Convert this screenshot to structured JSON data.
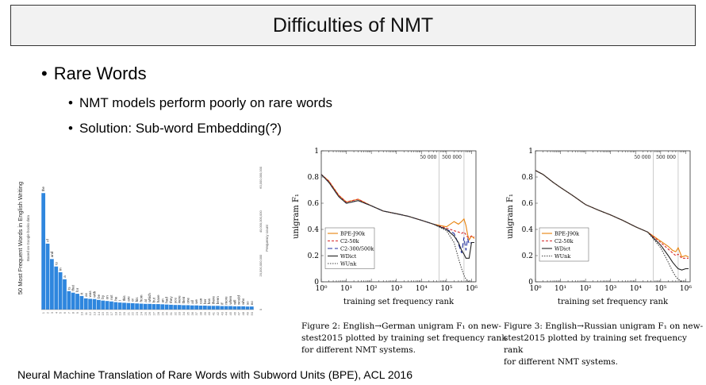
{
  "slide": {
    "title": "Difficulties of NMT",
    "bullet1": "Rare Words",
    "bullet2": "NMT models perform poorly on rare words",
    "bullet3": "Solution: Sub-word Embedding(?)",
    "citation": "Neural Machine Translation of Rare Words with Subword Units (BPE), ACL 2016"
  },
  "figure2_caption": [
    "Figure 2: English→German unigram F₁ on new-",
    "stest2015 plotted by training set frequency rank",
    "for different NMT systems."
  ],
  "figure3_caption": [
    "Figure 3: English→Russian unigram F₁ on new-",
    "stest2015 plotted by training set frequency rank",
    "for different NMT systems."
  ],
  "chart_data": [
    {
      "type": "bar",
      "ylabel": "50 Most Frequent Words in English Writing",
      "subtitle": "Based on Google books data",
      "y2label": "Frequency count",
      "yticks": [
        "0",
        "20,000,000,000",
        "40,000,000,000",
        "60,000,000,000"
      ],
      "ylim": [
        0,
        65000000000
      ],
      "categories": [
        "the",
        "of",
        "and",
        "to",
        "in",
        "a",
        "is",
        "that",
        "for",
        "it",
        "as",
        "was",
        "with",
        "be",
        "by",
        "on",
        "not",
        "he",
        "I",
        "this",
        "are",
        "or",
        "his",
        "from",
        "at",
        "which",
        "but",
        "have",
        "an",
        "had",
        "they",
        "you",
        "were",
        "their",
        "one",
        "all",
        "we",
        "can",
        "her",
        "has",
        "there",
        "been",
        "if",
        "more",
        "when",
        "will",
        "would",
        "who",
        "so",
        "no"
      ],
      "values": [
        53000000000,
        30000000000,
        23000000000,
        19600000000,
        17000000000,
        13800000000,
        8400000000,
        7700000000,
        7200000000,
        6200000000,
        5100000000,
        4900000000,
        4800000000,
        4400000000,
        4100000000,
        3900000000,
        3700000000,
        3400000000,
        3200000000,
        3100000000,
        3000000000,
        2900000000,
        2800000000,
        2700000000,
        2600000000,
        2600000000,
        2500000000,
        2500000000,
        2400000000,
        2300000000,
        2200000000,
        2100000000,
        2100000000,
        2000000000,
        2000000000,
        1900000000,
        1900000000,
        1800000000,
        1800000000,
        1700000000,
        1700000000,
        1700000000,
        1600000000,
        1600000000,
        1600000000,
        1500000000,
        1500000000,
        1500000000,
        1400000000,
        1400000000
      ]
    },
    {
      "type": "line",
      "xlabel": "training set frequency rank",
      "ylabel": "unigram F₁",
      "xscale": "log",
      "xlim": [
        1,
        1500000
      ],
      "ylim": [
        0,
        1
      ],
      "yticks": [
        "0",
        "0.2",
        "0.4",
        "0.6",
        "0.8",
        "1"
      ],
      "xticks": [
        "10⁰",
        "10¹",
        "10²",
        "10³",
        "10⁴",
        "10⁵",
        "10⁶"
      ],
      "vlines": [
        {
          "x": 50000,
          "label": "50 000"
        },
        {
          "x": 500000,
          "label": "500 000"
        }
      ],
      "legend": "bottom-left",
      "series": [
        {
          "name": "BPE-J90k",
          "color": "#e8820a",
          "dash": "",
          "x": [
            1,
            2,
            5,
            10,
            30,
            100,
            300,
            1000,
            3000,
            10000,
            30000,
            100000,
            200000,
            300000,
            400000,
            500000,
            600000,
            700000,
            800000,
            1000000,
            1300000
          ],
          "y": [
            0.82,
            0.77,
            0.66,
            0.61,
            0.63,
            0.58,
            0.54,
            0.52,
            0.5,
            0.47,
            0.44,
            0.42,
            0.46,
            0.44,
            0.46,
            0.48,
            0.43,
            0.36,
            0.32,
            0.35,
            0.33
          ]
        },
        {
          "name": "C2-50k",
          "color": "#d62a2a",
          "dash": "3,2",
          "x": [
            1,
            2,
            5,
            10,
            30,
            100,
            300,
            1000,
            3000,
            10000,
            30000,
            100000,
            200000,
            300000,
            400000,
            500000,
            600000,
            700000,
            800000,
            1000000,
            1300000
          ],
          "y": [
            0.82,
            0.77,
            0.66,
            0.61,
            0.63,
            0.58,
            0.54,
            0.52,
            0.5,
            0.47,
            0.44,
            0.41,
            0.39,
            0.38,
            0.37,
            0.38,
            0.36,
            0.34,
            0.34,
            0.35,
            0.34
          ]
        },
        {
          "name": "C2-300/500k",
          "color": "#1f2fa0",
          "dash": "6,3",
          "x": [
            1,
            2,
            5,
            10,
            30,
            100,
            300,
            1000,
            3000,
            10000,
            30000,
            100000,
            200000,
            300000,
            400000,
            500000,
            600000,
            700000,
            800000,
            1000000,
            1300000
          ],
          "y": [
            0.82,
            0.76,
            0.65,
            0.6,
            0.62,
            0.58,
            0.54,
            0.52,
            0.5,
            0.47,
            0.44,
            0.4,
            0.37,
            0.29,
            0.22,
            0.34,
            0.24,
            0.33,
            0.29,
            0.3,
            0.3
          ]
        },
        {
          "name": "WDict",
          "color": "#222222",
          "dash": "",
          "x": [
            1,
            2,
            5,
            10,
            30,
            100,
            300,
            1000,
            3000,
            10000,
            30000,
            100000,
            200000,
            300000,
            400000,
            500000,
            600000,
            700000,
            800000,
            1000000,
            1300000
          ],
          "y": [
            0.82,
            0.76,
            0.65,
            0.6,
            0.62,
            0.58,
            0.54,
            0.52,
            0.5,
            0.47,
            0.44,
            0.4,
            0.35,
            0.3,
            0.24,
            0.21,
            0.18,
            0.18,
            0.18,
            0.3,
            0.3
          ]
        },
        {
          "name": "WUnk",
          "color": "#444444",
          "dash": "1.5,1.5",
          "x": [
            1,
            2,
            5,
            10,
            30,
            100,
            300,
            1000,
            3000,
            10000,
            30000,
            100000,
            200000,
            300000,
            400000,
            500000,
            600000,
            800000,
            1000000,
            1300000
          ],
          "y": [
            0.82,
            0.76,
            0.65,
            0.6,
            0.62,
            0.58,
            0.54,
            0.52,
            0.5,
            0.47,
            0.44,
            0.39,
            0.3,
            0.18,
            0.1,
            0.05,
            0.02,
            0.0,
            0.0,
            0.0
          ]
        }
      ]
    },
    {
      "type": "line",
      "xlabel": "training set frequency rank",
      "ylabel": "unigram F₁",
      "xscale": "log",
      "xlim": [
        1,
        1500000
      ],
      "ylim": [
        0,
        1
      ],
      "yticks": [
        "0",
        "0.2",
        "0.4",
        "0.6",
        "0.8",
        "1"
      ],
      "xticks": [
        "10⁰",
        "10¹",
        "10²",
        "10³",
        "10⁴",
        "10⁵",
        "10⁶"
      ],
      "vlines": [
        {
          "x": 50000,
          "label": "50 000"
        },
        {
          "x": 500000,
          "label": "500 000"
        }
      ],
      "legend": "bottom-left",
      "series": [
        {
          "name": "BPE-J90k",
          "color": "#e8820a",
          "dash": "",
          "x": [
            1,
            2,
            5,
            10,
            30,
            100,
            300,
            1000,
            3000,
            10000,
            30000,
            100000,
            200000,
            300000,
            400000,
            500000,
            700000,
            1000000,
            1300000
          ],
          "y": [
            0.85,
            0.82,
            0.76,
            0.72,
            0.66,
            0.59,
            0.55,
            0.51,
            0.47,
            0.42,
            0.38,
            0.31,
            0.27,
            0.24,
            0.23,
            0.26,
            0.19,
            0.2,
            0.19
          ]
        },
        {
          "name": "C2-50k",
          "color": "#d62a2a",
          "dash": "3,2",
          "x": [
            1,
            2,
            5,
            10,
            30,
            100,
            300,
            1000,
            3000,
            10000,
            30000,
            100000,
            200000,
            300000,
            400000,
            500000,
            700000,
            1000000,
            1300000
          ],
          "y": [
            0.85,
            0.82,
            0.76,
            0.72,
            0.66,
            0.59,
            0.55,
            0.51,
            0.47,
            0.42,
            0.38,
            0.3,
            0.25,
            0.22,
            0.2,
            0.21,
            0.18,
            0.18,
            0.18
          ]
        },
        {
          "name": "WDict",
          "color": "#222222",
          "dash": "",
          "x": [
            1,
            2,
            5,
            10,
            30,
            100,
            300,
            1000,
            3000,
            10000,
            30000,
            100000,
            200000,
            300000,
            400000,
            500000,
            700000,
            1000000,
            1300000
          ],
          "y": [
            0.85,
            0.82,
            0.76,
            0.72,
            0.66,
            0.59,
            0.55,
            0.51,
            0.47,
            0.42,
            0.38,
            0.28,
            0.2,
            0.15,
            0.12,
            0.1,
            0.09,
            0.1,
            0.1
          ]
        },
        {
          "name": "WUnk",
          "color": "#444444",
          "dash": "1.5,1.5",
          "x": [
            1,
            2,
            5,
            10,
            30,
            100,
            300,
            1000,
            3000,
            10000,
            30000,
            100000,
            200000,
            300000,
            400000,
            500000,
            700000,
            1000000,
            1300000
          ],
          "y": [
            0.85,
            0.82,
            0.76,
            0.72,
            0.66,
            0.59,
            0.55,
            0.51,
            0.47,
            0.42,
            0.38,
            0.26,
            0.15,
            0.08,
            0.04,
            0.02,
            0.0,
            0.0,
            0.0
          ]
        }
      ]
    }
  ]
}
